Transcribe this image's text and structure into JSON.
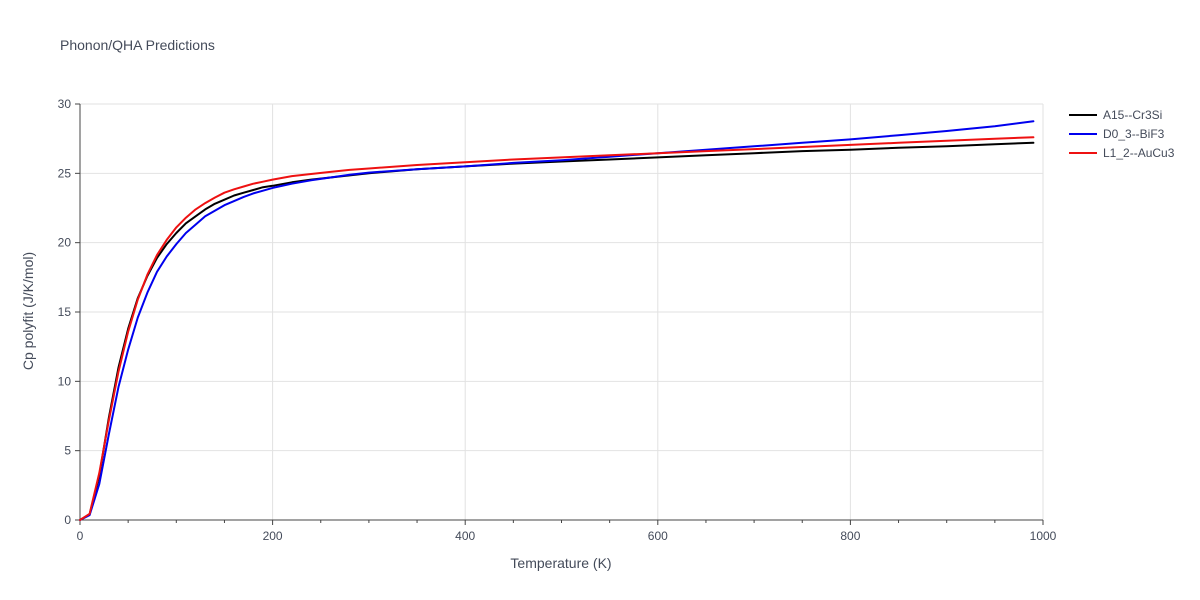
{
  "chart_data": {
    "type": "line",
    "title": "Phonon/QHA Predictions",
    "xlabel": "Temperature (K)",
    "ylabel": "Cp polyfit (J/K/mol)",
    "xlim": [
      0,
      1000
    ],
    "ylim": [
      0,
      30
    ],
    "x_ticks": [
      0,
      200,
      400,
      600,
      800,
      1000
    ],
    "y_ticks": [
      0,
      5,
      10,
      15,
      20,
      25,
      30
    ],
    "x_tick_labels": [
      "0",
      "200",
      "400",
      "600",
      "800",
      "1000"
    ],
    "y_tick_labels": [
      "0",
      "5",
      "10",
      "15",
      "20",
      "25",
      "30"
    ],
    "x_minor_ticks": [
      50,
      100,
      150,
      250,
      300,
      350,
      450,
      500,
      550,
      650,
      700,
      750,
      850,
      900,
      950
    ],
    "grid": true,
    "legend_position": "top-right",
    "series": [
      {
        "name": "A15--Cr3Si",
        "color": "#000000",
        "x": [
          0,
          10,
          20,
          30,
          40,
          50,
          60,
          70,
          80,
          90,
          100,
          110,
          120,
          130,
          140,
          150,
          160,
          170,
          180,
          190,
          200,
          220,
          240,
          260,
          280,
          300,
          350,
          400,
          450,
          500,
          550,
          600,
          650,
          700,
          750,
          800,
          850,
          900,
          950,
          990
        ],
        "y": [
          0,
          0.4,
          3.2,
          7.4,
          11.0,
          13.8,
          16.0,
          17.6,
          18.9,
          19.9,
          20.7,
          21.4,
          21.9,
          22.4,
          22.8,
          23.1,
          23.4,
          23.6,
          23.8,
          24.0,
          24.1,
          24.35,
          24.55,
          24.7,
          24.85,
          25.0,
          25.3,
          25.5,
          25.7,
          25.85,
          26.0,
          26.15,
          26.3,
          26.45,
          26.6,
          26.7,
          26.85,
          26.95,
          27.1,
          27.2
        ]
      },
      {
        "name": "D0_3--BiF3",
        "color": "#0000ee",
        "x": [
          0,
          10,
          20,
          30,
          40,
          50,
          60,
          70,
          80,
          90,
          100,
          110,
          120,
          130,
          140,
          150,
          160,
          170,
          180,
          190,
          200,
          220,
          240,
          260,
          280,
          300,
          350,
          400,
          450,
          500,
          550,
          600,
          650,
          700,
          750,
          800,
          850,
          900,
          950,
          990
        ],
        "y": [
          0,
          0.35,
          2.6,
          6.2,
          9.6,
          12.3,
          14.6,
          16.4,
          17.9,
          19.0,
          19.9,
          20.7,
          21.3,
          21.9,
          22.3,
          22.7,
          23.0,
          23.3,
          23.55,
          23.75,
          23.95,
          24.25,
          24.5,
          24.7,
          24.9,
          25.05,
          25.3,
          25.5,
          25.75,
          25.95,
          26.2,
          26.45,
          26.7,
          26.95,
          27.2,
          27.45,
          27.75,
          28.05,
          28.4,
          28.75
        ]
      },
      {
        "name": "L1_2--AuCu3",
        "color": "#ee1111",
        "x": [
          0,
          10,
          20,
          30,
          40,
          50,
          60,
          70,
          80,
          90,
          100,
          110,
          120,
          130,
          140,
          150,
          160,
          170,
          180,
          190,
          200,
          220,
          240,
          260,
          280,
          300,
          350,
          400,
          450,
          500,
          550,
          600,
          650,
          700,
          750,
          800,
          850,
          900,
          950,
          990
        ],
        "y": [
          0,
          0.45,
          3.4,
          7.2,
          10.7,
          13.6,
          15.9,
          17.7,
          19.1,
          20.2,
          21.1,
          21.8,
          22.4,
          22.85,
          23.25,
          23.6,
          23.85,
          24.05,
          24.25,
          24.4,
          24.55,
          24.8,
          24.95,
          25.1,
          25.25,
          25.35,
          25.6,
          25.8,
          26.0,
          26.15,
          26.3,
          26.45,
          26.6,
          26.75,
          26.9,
          27.05,
          27.2,
          27.35,
          27.5,
          27.6
        ]
      }
    ]
  }
}
